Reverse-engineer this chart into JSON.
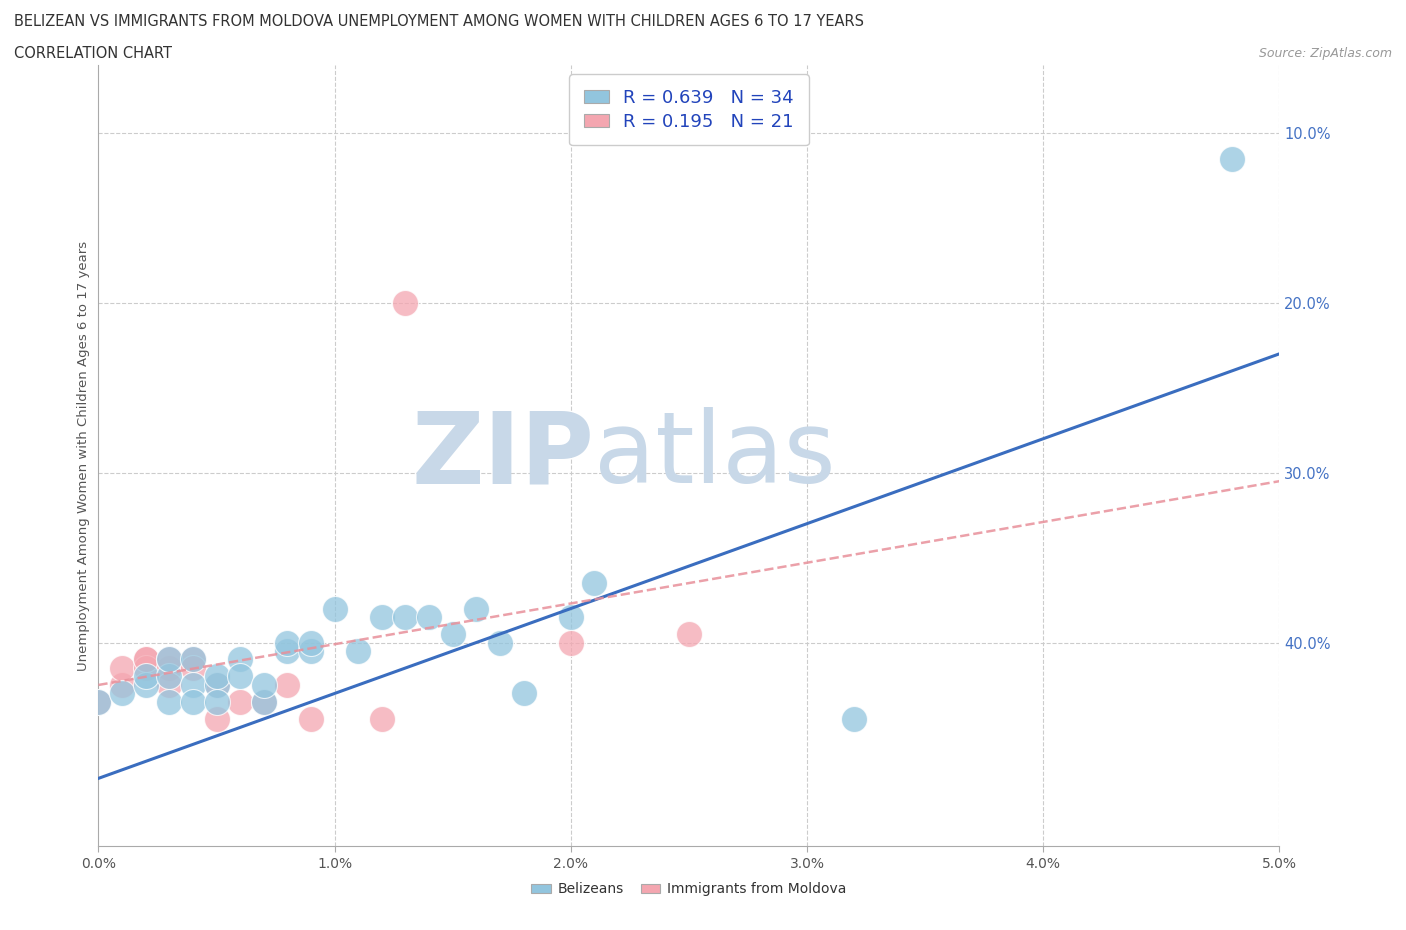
{
  "title_line1": "BELIZEAN VS IMMIGRANTS FROM MOLDOVA UNEMPLOYMENT AMONG WOMEN WITH CHILDREN AGES 6 TO 17 YEARS",
  "title_line2": "CORRELATION CHART",
  "source_text": "Source: ZipAtlas.com",
  "xlabel_ticks": [
    "0.0%",
    "1.0%",
    "2.0%",
    "3.0%",
    "4.0%",
    "5.0%"
  ],
  "ylabel_ticks_right": [
    "40.0%",
    "30.0%",
    "20.0%",
    "10.0%"
  ],
  "ylabel_label": "Unemployment Among Women with Children Ages 6 to 17 years",
  "xlim": [
    0.0,
    0.05
  ],
  "ylim": [
    -0.02,
    0.44
  ],
  "watermark_zip": "ZIP",
  "watermark_atlas": "atlas",
  "legend_blue_label": "Belizeans",
  "legend_pink_label": "Immigrants from Moldova",
  "R_blue": "0.639",
  "N_blue": "34",
  "R_pink": "0.195",
  "N_pink": "21",
  "blue_color": "#92C5DE",
  "pink_color": "#F4A6B0",
  "blue_line_color": "#3A6DBF",
  "pink_line_color": "#E8909A",
  "blue_scatter": [
    [
      0.0,
      0.065
    ],
    [
      0.001,
      0.07
    ],
    [
      0.002,
      0.075
    ],
    [
      0.002,
      0.08
    ],
    [
      0.003,
      0.08
    ],
    [
      0.003,
      0.09
    ],
    [
      0.003,
      0.065
    ],
    [
      0.004,
      0.075
    ],
    [
      0.004,
      0.065
    ],
    [
      0.004,
      0.09
    ],
    [
      0.005,
      0.075
    ],
    [
      0.005,
      0.065
    ],
    [
      0.005,
      0.08
    ],
    [
      0.006,
      0.09
    ],
    [
      0.006,
      0.08
    ],
    [
      0.007,
      0.065
    ],
    [
      0.007,
      0.075
    ],
    [
      0.008,
      0.095
    ],
    [
      0.008,
      0.1
    ],
    [
      0.009,
      0.095
    ],
    [
      0.009,
      0.1
    ],
    [
      0.01,
      0.12
    ],
    [
      0.011,
      0.095
    ],
    [
      0.012,
      0.115
    ],
    [
      0.013,
      0.115
    ],
    [
      0.014,
      0.115
    ],
    [
      0.015,
      0.105
    ],
    [
      0.016,
      0.12
    ],
    [
      0.017,
      0.1
    ],
    [
      0.018,
      0.07
    ],
    [
      0.02,
      0.115
    ],
    [
      0.021,
      0.135
    ],
    [
      0.032,
      0.055
    ],
    [
      0.048,
      0.385
    ]
  ],
  "pink_scatter": [
    [
      0.0,
      0.065
    ],
    [
      0.001,
      0.075
    ],
    [
      0.001,
      0.085
    ],
    [
      0.002,
      0.09
    ],
    [
      0.002,
      0.085
    ],
    [
      0.002,
      0.09
    ],
    [
      0.003,
      0.085
    ],
    [
      0.003,
      0.09
    ],
    [
      0.003,
      0.075
    ],
    [
      0.004,
      0.09
    ],
    [
      0.004,
      0.085
    ],
    [
      0.005,
      0.075
    ],
    [
      0.005,
      0.055
    ],
    [
      0.006,
      0.065
    ],
    [
      0.007,
      0.065
    ],
    [
      0.008,
      0.075
    ],
    [
      0.009,
      0.055
    ],
    [
      0.012,
      0.055
    ],
    [
      0.013,
      0.3
    ],
    [
      0.02,
      0.1
    ],
    [
      0.025,
      0.105
    ]
  ],
  "blue_line_x": [
    0.0,
    0.05
  ],
  "blue_line_y": [
    0.02,
    0.27
  ],
  "pink_line_x": [
    0.0,
    0.05
  ],
  "pink_line_y": [
    0.075,
    0.195
  ],
  "grid_color": "#CCCCCC",
  "bg_color": "#FFFFFF",
  "ytick_positions": [
    0.1,
    0.2,
    0.3,
    0.4
  ],
  "xtick_positions": [
    0.0,
    0.01,
    0.02,
    0.03,
    0.04,
    0.05
  ]
}
